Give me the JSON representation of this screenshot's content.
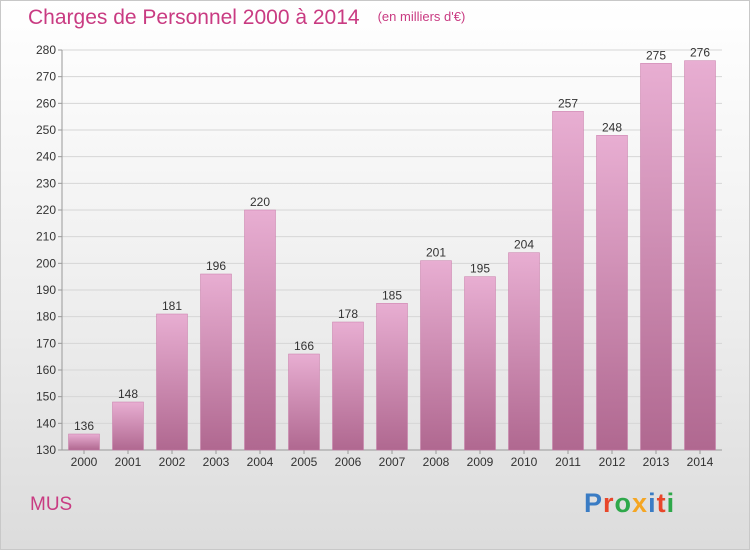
{
  "chart_data": {
    "type": "bar",
    "title": "Charges de Personnel 2000 à 2014",
    "subtitle": "(en milliers d'€)",
    "categories": [
      "2000",
      "2001",
      "2002",
      "2003",
      "2004",
      "2005",
      "2006",
      "2007",
      "2008",
      "2009",
      "2010",
      "2011",
      "2012",
      "2013",
      "2014"
    ],
    "values": [
      136,
      148,
      181,
      196,
      220,
      166,
      178,
      185,
      201,
      195,
      204,
      257,
      248,
      275,
      276
    ],
    "ylim": [
      130,
      280
    ],
    "yticks": [
      130,
      140,
      150,
      160,
      170,
      180,
      190,
      200,
      210,
      220,
      230,
      240,
      250,
      260,
      270,
      280
    ],
    "grid": true,
    "bar_color": "#d48fb8"
  },
  "commune": "MUS",
  "logo": {
    "text": "Proxiti",
    "colors": [
      "#3a7cc4",
      "#e8462a",
      "#2ea84a",
      "#f5a623",
      "#3a7cc4",
      "#e8462a",
      "#2ea84a"
    ]
  }
}
